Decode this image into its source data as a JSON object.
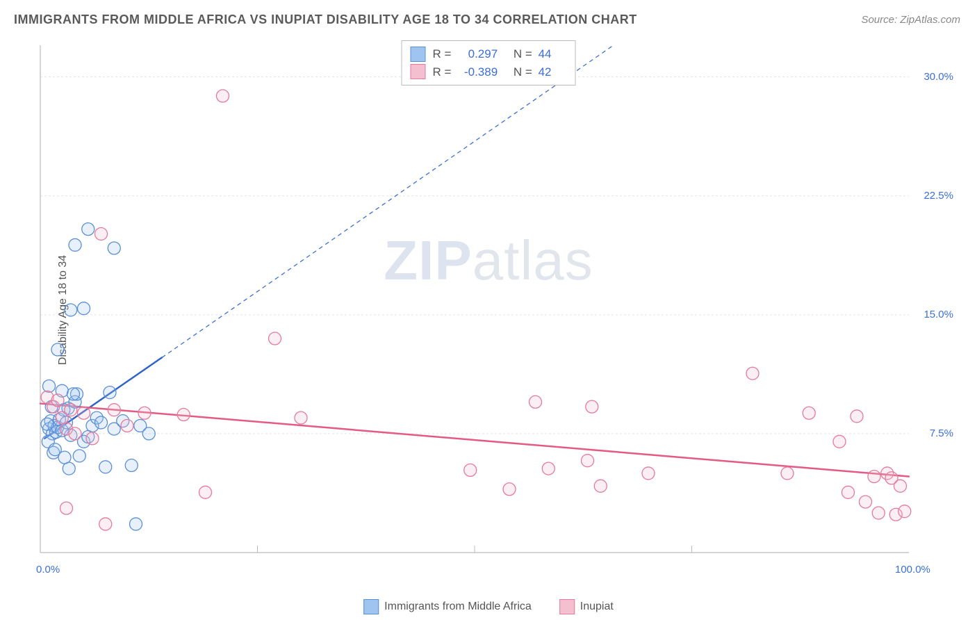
{
  "title": "IMMIGRANTS FROM MIDDLE AFRICA VS INUPIAT DISABILITY AGE 18 TO 34 CORRELATION CHART",
  "source": "Source: ZipAtlas.com",
  "ylabel": "Disability Age 18 to 34",
  "watermark": {
    "zip": "ZIP",
    "atlas": "atlas"
  },
  "chart": {
    "type": "scatter",
    "xlim": [
      0,
      100
    ],
    "ylim": [
      0,
      32
    ],
    "xtick_labels": [
      "0.0%",
      "100.0%"
    ],
    "xtick_positions": [
      0,
      100
    ],
    "xtick_minor": [
      25,
      50,
      75
    ],
    "ytick_labels": [
      "7.5%",
      "15.0%",
      "22.5%",
      "30.0%"
    ],
    "ytick_positions": [
      7.5,
      15.0,
      22.5,
      30.0
    ],
    "background_color": "#ffffff",
    "grid_color": "#e3e3e3",
    "grid_dash": "3,3",
    "axis_color": "#bcbcbc",
    "marker_radius": 9,
    "marker_fill_opacity": 0.25,
    "marker_stroke_width": 1.3,
    "series": [
      {
        "name": "Immigrants from Middle Africa",
        "color_fill": "#9fc4ef",
        "color_stroke": "#5a8fd6",
        "r_value": "0.297",
        "n_value": "44",
        "trend": {
          "solid": {
            "x1": 0.5,
            "y1": 7.2,
            "x2": 14,
            "y2": 12.3,
            "color": "#2f63c6",
            "width": 2.5
          },
          "dashed": {
            "x1": 14,
            "y1": 12.3,
            "x2": 66,
            "y2": 32,
            "color": "#3b6fd6",
            "width": 1.3,
            "dash": "6,5"
          }
        },
        "points": [
          [
            1.0,
            7.8
          ],
          [
            1.2,
            8.3
          ],
          [
            1.4,
            7.5
          ],
          [
            1.6,
            8.0
          ],
          [
            1.8,
            7.6
          ],
          [
            2.0,
            7.9
          ],
          [
            2.2,
            8.4
          ],
          [
            0.8,
            8.1
          ],
          [
            2.5,
            7.7
          ],
          [
            3.0,
            8.2
          ],
          [
            3.2,
            9.1
          ],
          [
            3.5,
            7.4
          ],
          [
            4.0,
            9.5
          ],
          [
            4.2,
            10.0
          ],
          [
            1.5,
            6.3
          ],
          [
            2.8,
            6.0
          ],
          [
            3.3,
            5.3
          ],
          [
            4.5,
            6.1
          ],
          [
            5.0,
            7.0
          ],
          [
            5.5,
            7.3
          ],
          [
            6.0,
            8.0
          ],
          [
            6.5,
            8.5
          ],
          [
            7.0,
            8.2
          ],
          [
            7.5,
            5.4
          ],
          [
            8.0,
            10.1
          ],
          [
            8.5,
            7.8
          ],
          [
            9.5,
            8.3
          ],
          [
            10.5,
            5.5
          ],
          [
            11.5,
            8.0
          ],
          [
            12.5,
            7.5
          ],
          [
            1.0,
            10.5
          ],
          [
            2.5,
            10.2
          ],
          [
            3.8,
            10.0
          ],
          [
            2.0,
            12.8
          ],
          [
            3.5,
            15.3
          ],
          [
            5.0,
            15.4
          ],
          [
            4.0,
            19.4
          ],
          [
            8.5,
            19.2
          ],
          [
            5.5,
            20.4
          ],
          [
            1.3,
            9.2
          ],
          [
            2.7,
            9.0
          ],
          [
            0.9,
            7.0
          ],
          [
            1.7,
            6.5
          ],
          [
            11.0,
            1.8
          ]
        ]
      },
      {
        "name": "Inupiat",
        "color_fill": "#f4c0cf",
        "color_stroke": "#e47a9c",
        "r_value": "-0.389",
        "n_value": "42",
        "trend": {
          "solid": {
            "x1": 0,
            "y1": 9.4,
            "x2": 100,
            "y2": 4.8,
            "color": "#e35a84",
            "width": 2.5
          }
        },
        "points": [
          [
            0.8,
            9.8
          ],
          [
            1.5,
            9.2
          ],
          [
            2.0,
            9.6
          ],
          [
            2.5,
            8.5
          ],
          [
            3.0,
            7.8
          ],
          [
            3.5,
            9.0
          ],
          [
            4.0,
            7.5
          ],
          [
            5.0,
            8.8
          ],
          [
            6.0,
            7.2
          ],
          [
            7.0,
            20.1
          ],
          [
            8.5,
            9.0
          ],
          [
            10.0,
            8.0
          ],
          [
            12.0,
            8.8
          ],
          [
            16.5,
            8.7
          ],
          [
            19.0,
            3.8
          ],
          [
            21.0,
            28.8
          ],
          [
            27.0,
            13.5
          ],
          [
            30.0,
            8.5
          ],
          [
            3.0,
            2.8
          ],
          [
            7.5,
            1.8
          ],
          [
            49.5,
            5.2
          ],
          [
            54.0,
            4.0
          ],
          [
            58.5,
            5.3
          ],
          [
            63.0,
            5.8
          ],
          [
            64.5,
            4.2
          ],
          [
            70.0,
            5.0
          ],
          [
            82.0,
            11.3
          ],
          [
            86.0,
            5.0
          ],
          [
            88.5,
            8.8
          ],
          [
            92.0,
            7.0
          ],
          [
            93.0,
            3.8
          ],
          [
            94.0,
            8.6
          ],
          [
            95.0,
            3.2
          ],
          [
            96.0,
            4.8
          ],
          [
            96.5,
            2.5
          ],
          [
            97.5,
            5.0
          ],
          [
            98.0,
            4.7
          ],
          [
            98.5,
            2.4
          ],
          [
            99.0,
            4.2
          ],
          [
            99.5,
            2.6
          ],
          [
            63.5,
            9.2
          ],
          [
            57.0,
            9.5
          ]
        ]
      }
    ]
  },
  "legend_text": {
    "r_label": "R =",
    "n_label": "N ="
  }
}
